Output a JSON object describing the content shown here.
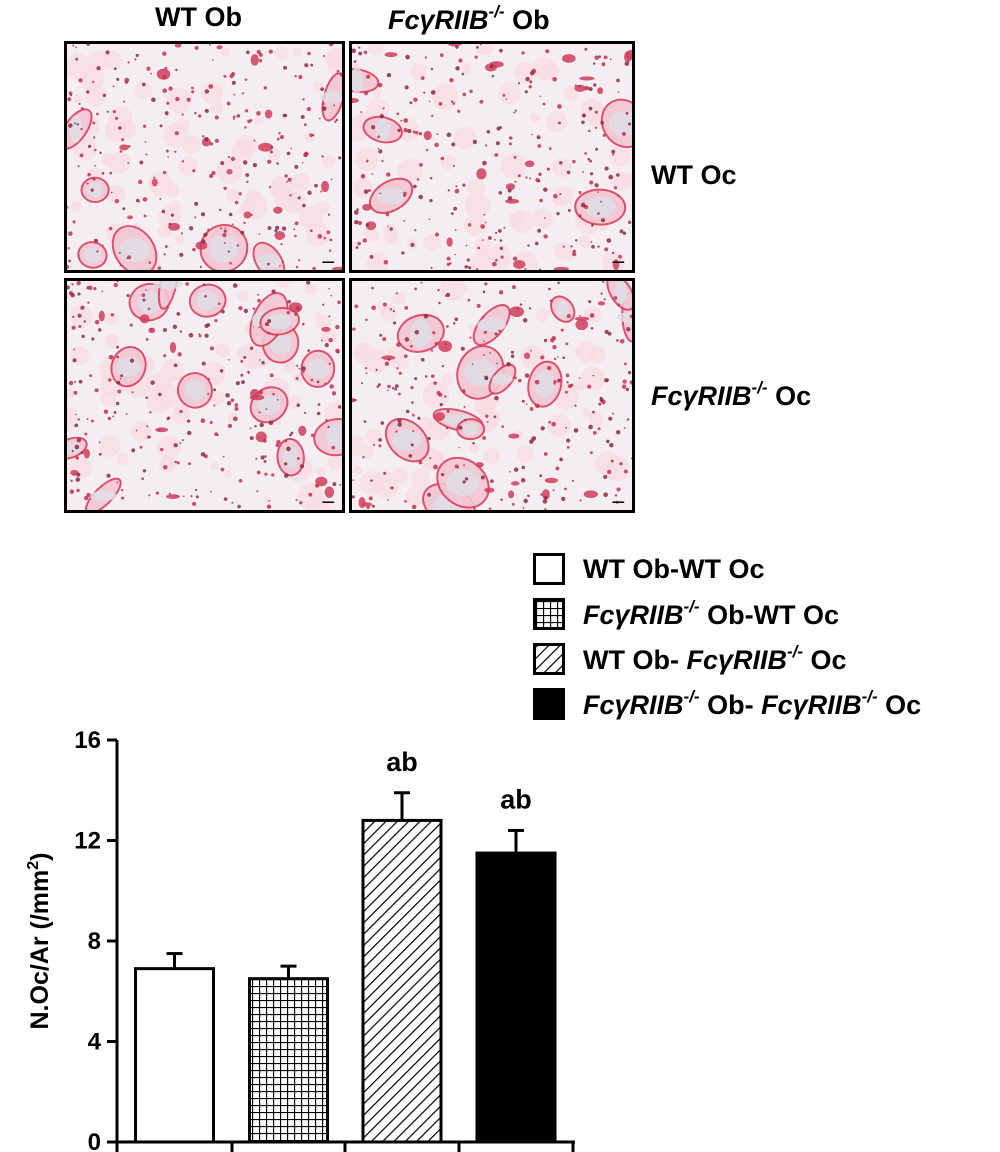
{
  "figure": {
    "col_headers": [
      {
        "gene": "",
        "sup": "",
        "text": "WT Ob"
      },
      {
        "gene": "FcγRIIB",
        "sup": "-/-",
        "text": " Ob"
      }
    ],
    "row_headers": [
      {
        "gene": "",
        "sup": "",
        "text": "WT Oc"
      },
      {
        "gene": "FcγRIIB",
        "sup": "-/-",
        "text": " Oc"
      }
    ],
    "panels": [
      {
        "name": "WT Ob / WT Oc"
      },
      {
        "name": "FcγRIIB-/- Ob / WT Oc"
      },
      {
        "name": "WT Ob / FcγRIIB-/- Oc"
      },
      {
        "name": "FcγRIIB-/- Ob / FcγRIIB-/- Oc"
      }
    ],
    "stain_color": "#d9405f"
  },
  "legend": [
    {
      "pattern": "white",
      "parts": [
        {
          "t": "WT Ob-WT Oc",
          "i": false
        }
      ]
    },
    {
      "pattern": "grid",
      "parts": [
        {
          "t": "FcγRIIB",
          "i": true
        },
        {
          "t": "-/-",
          "s": true
        },
        {
          "t": " Ob-WT Oc",
          "i": false
        }
      ]
    },
    {
      "pattern": "hatch",
      "parts": [
        {
          "t": "WT Ob- ",
          "i": false
        },
        {
          "t": "FcγRIIB",
          "i": true
        },
        {
          "t": "-/-",
          "s": true
        },
        {
          "t": " Oc",
          "i": false
        }
      ]
    },
    {
      "pattern": "black",
      "parts": [
        {
          "t": "FcγRIIB",
          "i": true
        },
        {
          "t": "-/-",
          "s": true
        },
        {
          "t": " Ob- ",
          "i": false
        },
        {
          "t": "FcγRIIB",
          "i": true
        },
        {
          "t": "-/-",
          "s": true
        },
        {
          "t": " Oc",
          "i": false
        }
      ]
    }
  ],
  "chart_data": {
    "type": "bar",
    "ylabel": "N.Oc/Ar (/mm",
    "ylabel_sup": "2",
    "ylabel_close": ")",
    "ylim": [
      0,
      16
    ],
    "yticks": [
      "0",
      "4",
      "8",
      "12",
      "16"
    ],
    "series": [
      {
        "values": [
          6.9,
          6.5,
          12.8,
          11.5
        ]
      }
    ],
    "errors": [
      0.6,
      0.5,
      1.1,
      0.9
    ],
    "annotations": [
      "",
      "",
      "ab",
      "ab"
    ],
    "patterns": [
      "white",
      "grid",
      "hatch",
      "black"
    ]
  }
}
